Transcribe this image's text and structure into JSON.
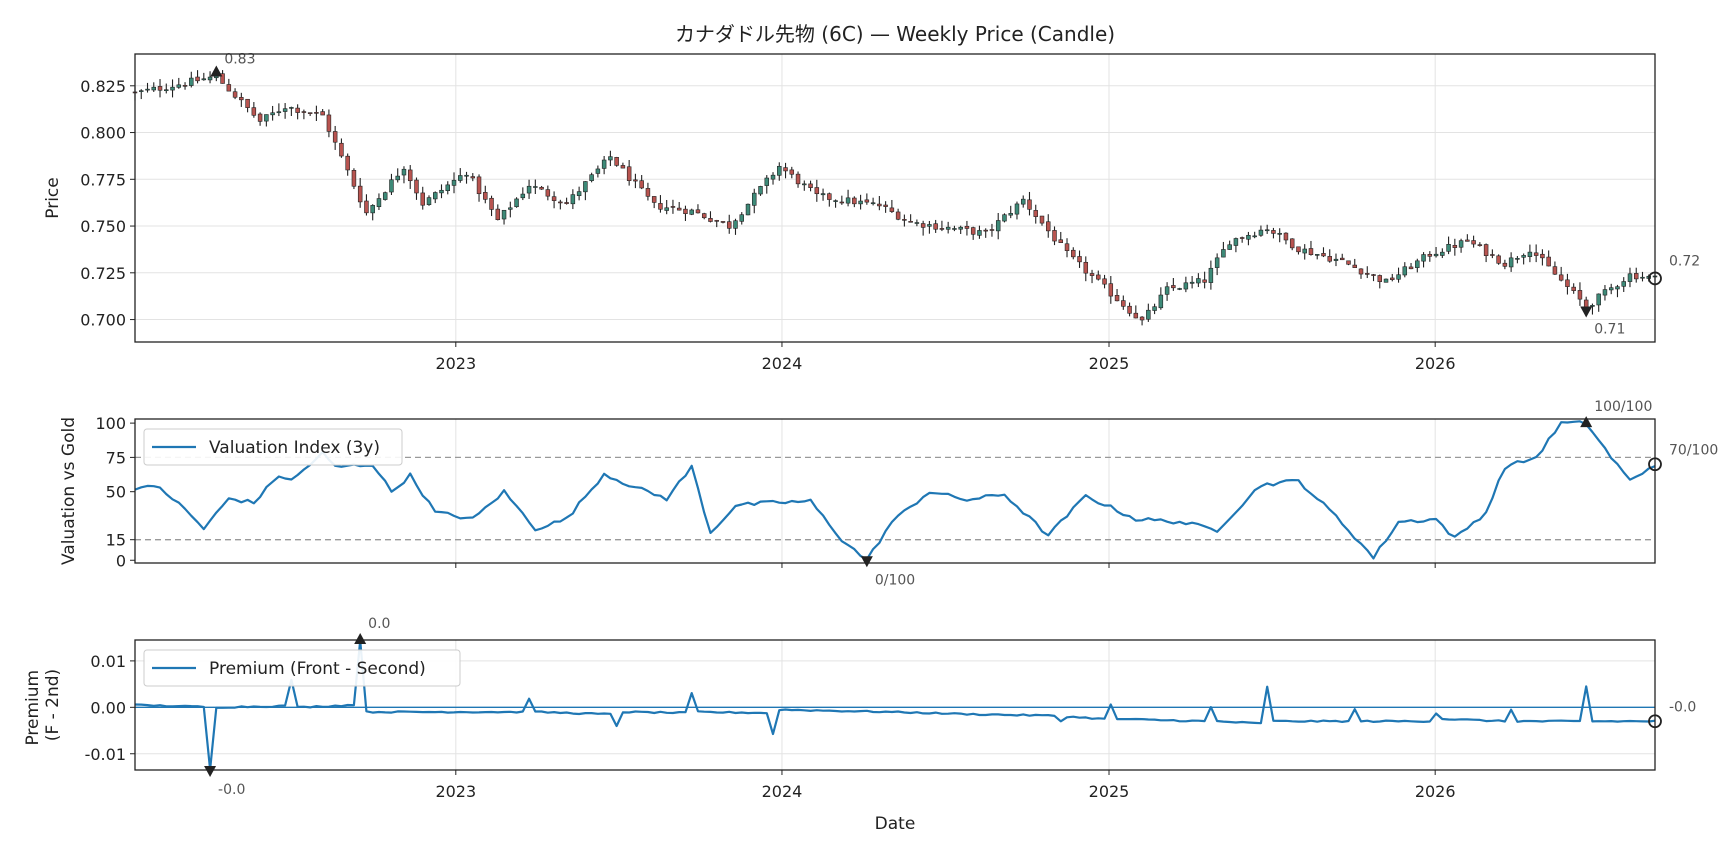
{
  "chart_data": [
    {
      "type": "candlestick",
      "title": "カナダドル先物 (6C) — Weekly Price (Candle)",
      "ylabel": "Price",
      "xlim": [
        "2022-01-07",
        "2026-09-04"
      ],
      "ylim": [
        0.688,
        0.842
      ],
      "x_ticks": [
        "2023",
        "2024",
        "2025",
        "2026"
      ],
      "y_ticks": [
        "0.700",
        "0.725",
        "0.750",
        "0.775",
        "0.800",
        "0.825"
      ],
      "grid": true,
      "close_anchors": [
        {
          "x": "2022-01-07",
          "y": 0.821
        },
        {
          "x": "2022-04-08",
          "y": 0.83
        },
        {
          "x": "2022-05-27",
          "y": 0.806
        },
        {
          "x": "2022-06-24",
          "y": 0.814
        },
        {
          "x": "2022-08-05",
          "y": 0.809
        },
        {
          "x": "2022-09-23",
          "y": 0.757
        },
        {
          "x": "2022-11-04",
          "y": 0.782
        },
        {
          "x": "2022-11-25",
          "y": 0.762
        },
        {
          "x": "2023-01-13",
          "y": 0.779
        },
        {
          "x": "2023-02-17",
          "y": 0.753
        },
        {
          "x": "2023-03-24",
          "y": 0.772
        },
        {
          "x": "2023-05-05",
          "y": 0.762
        },
        {
          "x": "2023-06-23",
          "y": 0.787
        },
        {
          "x": "2023-08-11",
          "y": 0.761
        },
        {
          "x": "2023-09-22",
          "y": 0.758
        },
        {
          "x": "2023-11-03",
          "y": 0.75
        },
        {
          "x": "2023-12-29",
          "y": 0.782
        },
        {
          "x": "2024-02-09",
          "y": 0.766
        },
        {
          "x": "2024-04-19",
          "y": 0.761
        },
        {
          "x": "2024-05-24",
          "y": 0.752
        },
        {
          "x": "2024-08-16",
          "y": 0.746
        },
        {
          "x": "2024-09-27",
          "y": 0.764
        },
        {
          "x": "2024-11-15",
          "y": 0.735
        },
        {
          "x": "2025-01-03",
          "y": 0.714
        },
        {
          "x": "2025-02-07",
          "y": 0.699
        },
        {
          "x": "2025-03-07",
          "y": 0.716
        },
        {
          "x": "2025-04-18",
          "y": 0.721
        },
        {
          "x": "2025-05-16",
          "y": 0.742
        },
        {
          "x": "2025-06-27",
          "y": 0.749
        },
        {
          "x": "2025-08-01",
          "y": 0.738
        },
        {
          "x": "2025-09-19",
          "y": 0.731
        },
        {
          "x": "2025-11-07",
          "y": 0.72
        },
        {
          "x": "2025-12-26",
          "y": 0.735
        },
        {
          "x": "2026-02-06",
          "y": 0.742
        },
        {
          "x": "2026-03-20",
          "y": 0.73
        },
        {
          "x": "2026-04-17",
          "y": 0.738
        },
        {
          "x": "2026-06-19",
          "y": 0.707
        },
        {
          "x": "2026-08-07",
          "y": 0.724
        },
        {
          "x": "2026-09-04",
          "y": 0.722
        }
      ],
      "annotations": [
        {
          "x": "2022-04-08",
          "y": 0.83,
          "text": "0.83",
          "marker": "up"
        },
        {
          "x": "2026-06-19",
          "y": 0.707,
          "text": "0.71",
          "marker": "down"
        },
        {
          "x": "2026-09-04",
          "y": 0.722,
          "text": "0.72",
          "marker": "circle"
        }
      ]
    },
    {
      "type": "line",
      "ylabel": "Valuation vs Gold",
      "ylim": [
        -2,
        103
      ],
      "y_ticks": [
        "0",
        "15",
        "50",
        "75",
        "100"
      ],
      "hlines": [
        15,
        75
      ],
      "legend": {
        "position": "top-left",
        "entries": [
          "Valuation Index (3y)"
        ]
      },
      "series": [
        {
          "name": "Valuation Index (3y)",
          "anchors": [
            {
              "x": "2022-01-07",
              "y": 53
            },
            {
              "x": "2022-02-04",
              "y": 53
            },
            {
              "x": "2022-03-04",
              "y": 37
            },
            {
              "x": "2022-03-25",
              "y": 23
            },
            {
              "x": "2022-04-22",
              "y": 45
            },
            {
              "x": "2022-05-20",
              "y": 42
            },
            {
              "x": "2022-06-17",
              "y": 62
            },
            {
              "x": "2022-07-01",
              "y": 58
            },
            {
              "x": "2022-08-05",
              "y": 78
            },
            {
              "x": "2022-08-19",
              "y": 68
            },
            {
              "x": "2022-09-30",
              "y": 70
            },
            {
              "x": "2022-10-21",
              "y": 50
            },
            {
              "x": "2022-11-11",
              "y": 62
            },
            {
              "x": "2022-12-09",
              "y": 35
            },
            {
              "x": "2023-01-20",
              "y": 30
            },
            {
              "x": "2023-02-24",
              "y": 50
            },
            {
              "x": "2023-03-31",
              "y": 23
            },
            {
              "x": "2023-05-05",
              "y": 30
            },
            {
              "x": "2023-06-16",
              "y": 63
            },
            {
              "x": "2023-07-21",
              "y": 53
            },
            {
              "x": "2023-08-25",
              "y": 45
            },
            {
              "x": "2023-09-22",
              "y": 68
            },
            {
              "x": "2023-10-13",
              "y": 20
            },
            {
              "x": "2023-11-10",
              "y": 40
            },
            {
              "x": "2023-12-22",
              "y": 42
            },
            {
              "x": "2024-02-02",
              "y": 43
            },
            {
              "x": "2024-03-08",
              "y": 15
            },
            {
              "x": "2024-04-05",
              "y": 0
            },
            {
              "x": "2024-05-03",
              "y": 28
            },
            {
              "x": "2024-06-14",
              "y": 50
            },
            {
              "x": "2024-07-26",
              "y": 44
            },
            {
              "x": "2024-09-06",
              "y": 48
            },
            {
              "x": "2024-10-25",
              "y": 18
            },
            {
              "x": "2024-12-06",
              "y": 47
            },
            {
              "x": "2025-01-31",
              "y": 30
            },
            {
              "x": "2025-03-21",
              "y": 28
            },
            {
              "x": "2025-05-02",
              "y": 22
            },
            {
              "x": "2025-06-20",
              "y": 55
            },
            {
              "x": "2025-08-01",
              "y": 58
            },
            {
              "x": "2025-09-12",
              "y": 32
            },
            {
              "x": "2025-10-24",
              "y": 2
            },
            {
              "x": "2025-11-21",
              "y": 28
            },
            {
              "x": "2026-01-02",
              "y": 30
            },
            {
              "x": "2026-01-23",
              "y": 16
            },
            {
              "x": "2026-02-27",
              "y": 35
            },
            {
              "x": "2026-03-20",
              "y": 68
            },
            {
              "x": "2026-04-24",
              "y": 75
            },
            {
              "x": "2026-05-22",
              "y": 100
            },
            {
              "x": "2026-06-19",
              "y": 100
            },
            {
              "x": "2026-07-17",
              "y": 75
            },
            {
              "x": "2026-08-07",
              "y": 58
            },
            {
              "x": "2026-09-04",
              "y": 70
            }
          ]
        }
      ],
      "annotations": [
        {
          "x": "2026-06-19",
          "y": 100,
          "text": "100/100",
          "marker": "up"
        },
        {
          "x": "2024-04-05",
          "y": 0,
          "text": "0/100",
          "marker": "down"
        },
        {
          "x": "2026-09-04",
          "y": 70,
          "text": "70/100",
          "marker": "circle"
        }
      ]
    },
    {
      "type": "line",
      "ylabel": "Premium\n(F - 2nd)",
      "xlabel": "Date",
      "ylim": [
        -0.0135,
        0.0145
      ],
      "x_ticks": [
        "2023",
        "2024",
        "2025",
        "2026"
      ],
      "y_ticks": [
        "-0.01",
        "0.00",
        "0.01"
      ],
      "hlines": [
        0
      ],
      "legend": {
        "position": "top-left",
        "entries": [
          "Premium (Front - Second)"
        ]
      },
      "series": [
        {
          "name": "Premium (Front - Second)",
          "anchors": [
            {
              "x": "2022-01-07",
              "y": 0.0005
            },
            {
              "x": "2022-03-25",
              "y": 0.0001
            },
            {
              "x": "2022-04-01",
              "y": -0.0135
            },
            {
              "x": "2022-04-08",
              "y": 0.0
            },
            {
              "x": "2022-06-24",
              "y": 0.0003
            },
            {
              "x": "2022-07-01",
              "y": 0.006
            },
            {
              "x": "2022-07-08",
              "y": 0.0
            },
            {
              "x": "2022-09-09",
              "y": 0.0005
            },
            {
              "x": "2022-09-16",
              "y": 0.0145
            },
            {
              "x": "2022-09-23",
              "y": -0.001
            },
            {
              "x": "2023-01-06",
              "y": -0.001
            },
            {
              "x": "2023-03-17",
              "y": -0.001
            },
            {
              "x": "2023-03-24",
              "y": 0.002
            },
            {
              "x": "2023-03-31",
              "y": -0.001
            },
            {
              "x": "2023-06-23",
              "y": -0.0015
            },
            {
              "x": "2023-06-30",
              "y": -0.004
            },
            {
              "x": "2023-07-07",
              "y": -0.001
            },
            {
              "x": "2023-09-15",
              "y": -0.0012
            },
            {
              "x": "2023-09-22",
              "y": 0.003
            },
            {
              "x": "2023-09-29",
              "y": -0.001
            },
            {
              "x": "2023-12-15",
              "y": -0.0012
            },
            {
              "x": "2023-12-22",
              "y": -0.0058
            },
            {
              "x": "2023-12-29",
              "y": -0.0005
            },
            {
              "x": "2024-05-03",
              "y": -0.001
            },
            {
              "x": "2024-08-02",
              "y": -0.0015
            },
            {
              "x": "2024-11-01",
              "y": -0.0018
            },
            {
              "x": "2024-11-08",
              "y": -0.003
            },
            {
              "x": "2024-11-15",
              "y": -0.002
            },
            {
              "x": "2024-12-27",
              "y": -0.0025
            },
            {
              "x": "2025-01-03",
              "y": 0.0005
            },
            {
              "x": "2025-01-10",
              "y": -0.0025
            },
            {
              "x": "2025-04-18",
              "y": -0.003
            },
            {
              "x": "2025-04-25",
              "y": 0.0
            },
            {
              "x": "2025-05-02",
              "y": -0.003
            },
            {
              "x": "2025-06-20",
              "y": -0.0035
            },
            {
              "x": "2025-06-27",
              "y": 0.0045
            },
            {
              "x": "2025-07-04",
              "y": -0.003
            },
            {
              "x": "2025-09-26",
              "y": -0.003
            },
            {
              "x": "2025-10-03",
              "y": -0.0005
            },
            {
              "x": "2025-10-10",
              "y": -0.003
            },
            {
              "x": "2025-12-26",
              "y": -0.003
            },
            {
              "x": "2026-01-02",
              "y": -0.0012
            },
            {
              "x": "2026-01-09",
              "y": -0.0025
            },
            {
              "x": "2026-03-20",
              "y": -0.003
            },
            {
              "x": "2026-03-27",
              "y": -0.0005
            },
            {
              "x": "2026-04-03",
              "y": -0.003
            },
            {
              "x": "2026-06-12",
              "y": -0.003
            },
            {
              "x": "2026-06-19",
              "y": 0.0045
            },
            {
              "x": "2026-06-26",
              "y": -0.003
            },
            {
              "x": "2026-09-04",
              "y": -0.003
            }
          ]
        }
      ],
      "annotations": [
        {
          "x": "2022-09-16",
          "y": 0.0145,
          "text": "0.0",
          "marker": "up"
        },
        {
          "x": "2022-04-01",
          "y": -0.0135,
          "text": "-0.0",
          "marker": "down"
        },
        {
          "x": "2026-09-04",
          "y": -0.003,
          "text": "-0.0",
          "marker": "circle"
        }
      ]
    }
  ],
  "colors": {
    "up_candle": "#3d8a78",
    "down_candle": "#b85450",
    "wick": "#222222",
    "line": "#1f77b4",
    "marker": "#222222",
    "grid": "#e3e3e3",
    "dashed": "#999999"
  }
}
